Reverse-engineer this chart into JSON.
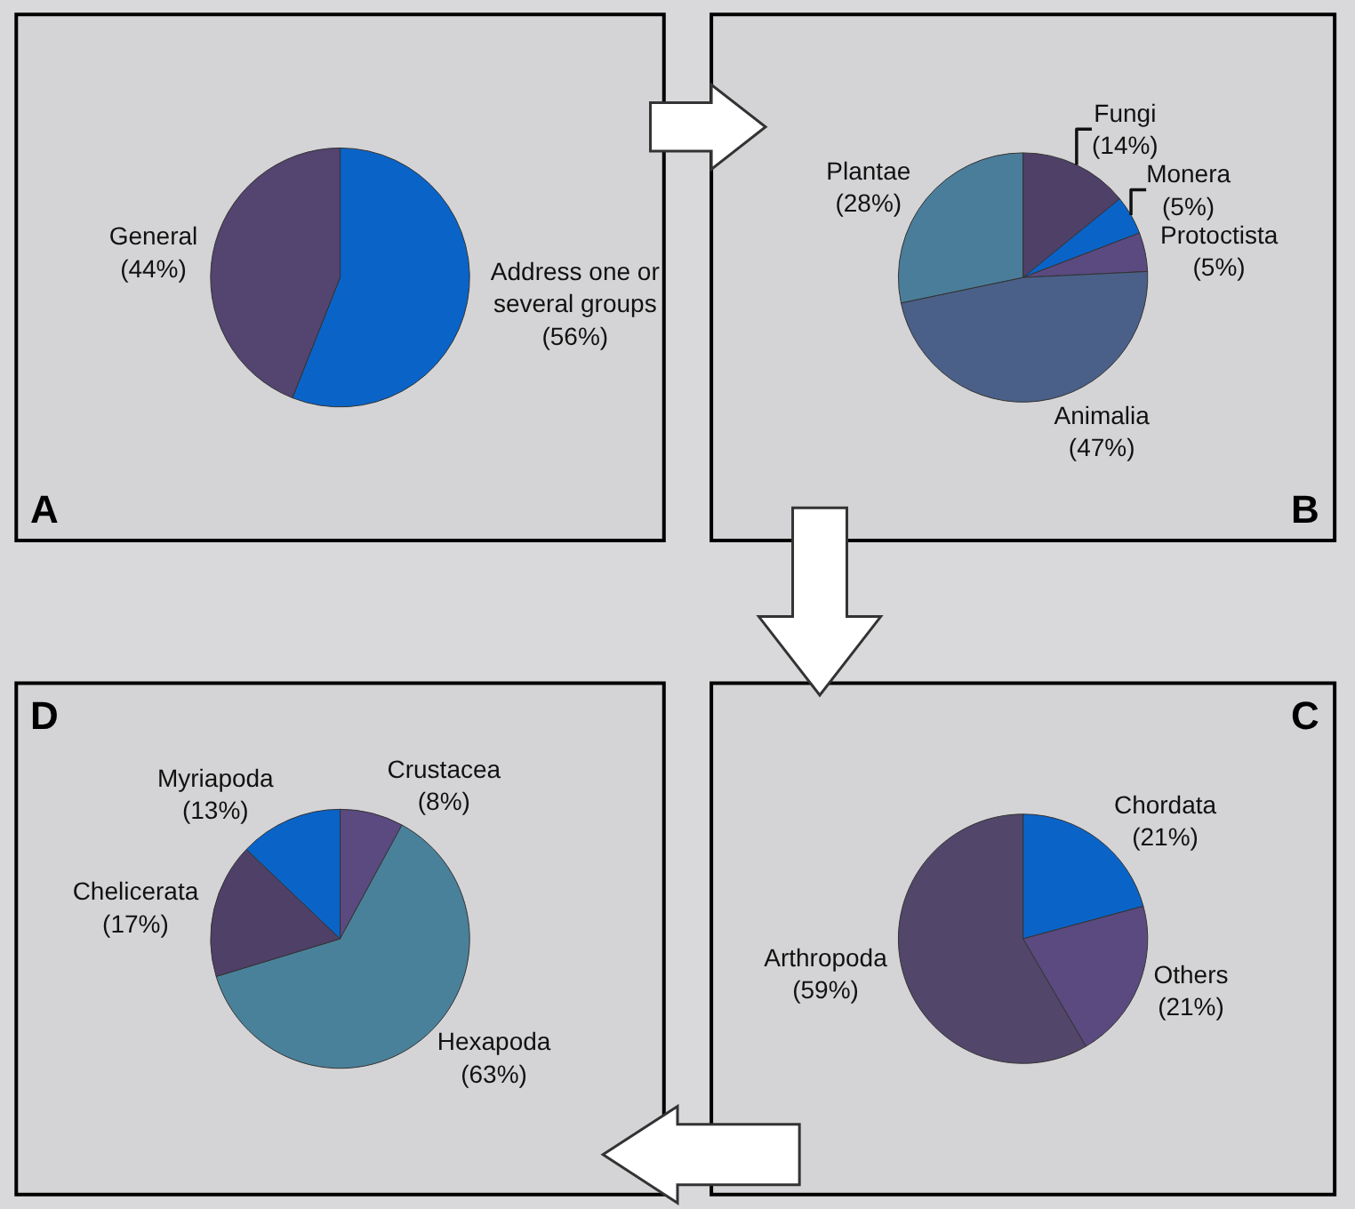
{
  "chart_data": [
    {
      "type": "pie",
      "title": "A",
      "categories": [
        "Address one or\nseveral groups",
        "General"
      ],
      "values": [
        56,
        44
      ],
      "value_labels": [
        "(56%)",
        "(44%)"
      ],
      "colors": [
        "#0a64c8",
        "#534470"
      ]
    },
    {
      "type": "pie",
      "title": "B",
      "categories": [
        "Fungi",
        "Monera",
        "Protoctista",
        "Animalia",
        "Plantae"
      ],
      "values": [
        14,
        5,
        5,
        47,
        28
      ],
      "value_labels": [
        "(14%)",
        "(5%)",
        "(5%)",
        "(47%)",
        "(28%)"
      ],
      "colors": [
        "#4f4068",
        "#0a64c8",
        "#5a4a80",
        "#4a6088",
        "#4a7d9a"
      ]
    },
    {
      "type": "pie",
      "title": "D",
      "categories": [
        "Crustacea",
        "Hexapoda",
        "Chelicerata",
        "Myriapoda"
      ],
      "values": [
        8,
        63,
        17,
        13
      ],
      "value_labels": [
        "(8%)",
        "(63%)",
        "(17%)",
        "(13%)"
      ],
      "colors": [
        "#5a4a80",
        "#4a819a",
        "#4f4068",
        "#0a64c8"
      ]
    },
    {
      "type": "pie",
      "title": "C",
      "categories": [
        "Chordata",
        "Others",
        "Arthropoda"
      ],
      "values": [
        21,
        21,
        59
      ],
      "value_labels": [
        "(21%)",
        "(21%)",
        "(59%)"
      ],
      "colors": [
        "#0a64c8",
        "#5a4a80",
        "#52466a"
      ]
    }
  ]
}
